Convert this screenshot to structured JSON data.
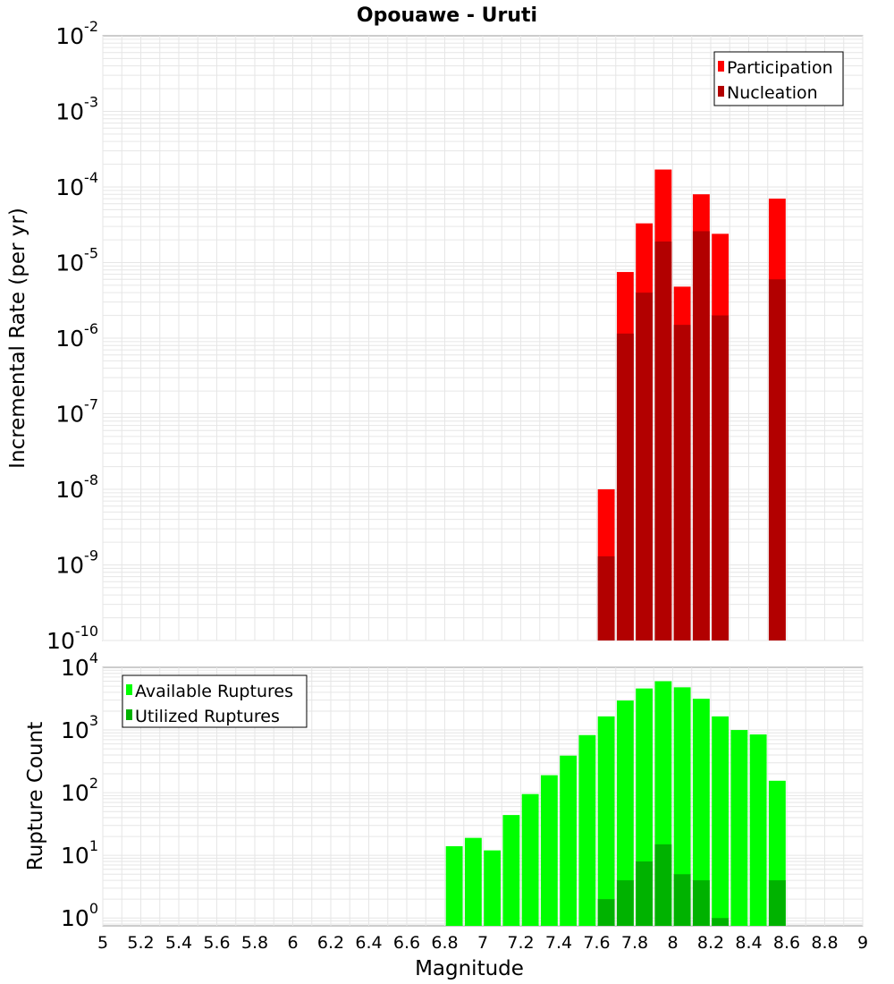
{
  "chart_data": [
    {
      "type": "bar",
      "title": "Opouawe - Uruti",
      "ylabel": "Incremental Rate (per yr)",
      "xlim": [
        5,
        9
      ],
      "ylim": [
        1e-10,
        0.01
      ],
      "yscale": "log",
      "grid": true,
      "legend_placement": "top-right",
      "colors": {
        "Participation": "#ff0000",
        "Nucleation": "#b20000"
      },
      "x": [
        7.65,
        7.75,
        7.85,
        7.95,
        8.05,
        8.15,
        8.25,
        8.55
      ],
      "series": [
        {
          "name": "Participation",
          "values": [
            1e-08,
            7.5e-06,
            3.3e-05,
            0.00017,
            4.8e-06,
            8e-05,
            2.4e-05,
            7e-05
          ]
        },
        {
          "name": "Nucleation",
          "values": [
            1.3e-09,
            1.15e-06,
            4e-06,
            1.9e-05,
            1.5e-06,
            2.6e-05,
            2e-06,
            6e-06
          ]
        }
      ],
      "yticks": [
        "10^-10",
        "10^-9",
        "10^-8",
        "10^-7",
        "10^-6",
        "10^-5",
        "10^-4",
        "10^-3",
        "10^-2"
      ]
    },
    {
      "type": "bar",
      "xlabel": "Magnitude",
      "ylabel": "Rupture Count",
      "xlim": [
        5,
        9
      ],
      "ylim": [
        0.75,
        10000.0
      ],
      "yscale": "log",
      "grid": true,
      "legend_placement": "top-left",
      "colors": {
        "Available Ruptures": "#00ff00",
        "Utilized Ruptures": "#00b200"
      },
      "x": [
        6.85,
        6.95,
        7.05,
        7.15,
        7.25,
        7.35,
        7.45,
        7.55,
        7.65,
        7.75,
        7.85,
        7.95,
        8.05,
        8.15,
        8.25,
        8.35,
        8.45,
        8.55
      ],
      "series": [
        {
          "name": "Available Ruptures",
          "values": [
            14,
            19,
            12,
            44,
            95,
            190,
            390,
            830,
            1650,
            2950,
            4600,
            6000,
            4800,
            3150,
            1650,
            1000,
            850,
            155
          ]
        },
        {
          "name": "Utilized Ruptures",
          "values": [
            null,
            null,
            null,
            null,
            null,
            null,
            null,
            null,
            2,
            4,
            8,
            15,
            5,
            4,
            1,
            null,
            null,
            4
          ]
        }
      ],
      "yticks": [
        "10^0",
        "10^1",
        "10^2",
        "10^3",
        "10^4"
      ],
      "xticks": [
        "5",
        "5.2",
        "5.4",
        "5.6",
        "5.8",
        "6",
        "6.2",
        "6.4",
        "6.6",
        "6.8",
        "7",
        "7.2",
        "7.4",
        "7.6",
        "7.8",
        "8",
        "8.2",
        "8.4",
        "8.6",
        "8.8",
        "9"
      ]
    }
  ]
}
